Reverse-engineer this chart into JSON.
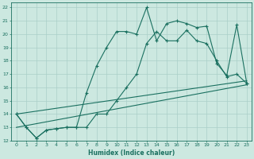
{
  "xlabel": "Humidex (Indice chaleur)",
  "xlim": [
    -0.5,
    23.5
  ],
  "ylim": [
    12,
    22.4
  ],
  "xticks": [
    0,
    1,
    2,
    3,
    4,
    5,
    6,
    7,
    8,
    9,
    10,
    11,
    12,
    13,
    14,
    15,
    16,
    17,
    18,
    19,
    20,
    21,
    22,
    23
  ],
  "yticks": [
    12,
    13,
    14,
    15,
    16,
    17,
    18,
    19,
    20,
    21,
    22
  ],
  "bg_color": "#cce8e0",
  "grid_color": "#aacfc8",
  "line_color": "#1a7060",
  "line1_x": [
    0,
    1,
    2,
    3,
    4,
    5,
    6,
    7,
    8,
    9,
    10,
    11,
    12,
    13,
    14,
    15,
    16,
    17,
    18,
    19,
    20,
    21,
    22,
    23
  ],
  "line1_y": [
    14,
    13,
    12.2,
    12.8,
    12.9,
    13.0,
    13.0,
    15.6,
    17.6,
    19.0,
    20.2,
    20.2,
    20.0,
    22.0,
    19.5,
    20.8,
    21.0,
    20.8,
    20.5,
    20.6,
    17.8,
    16.9,
    20.7,
    16.3
  ],
  "line2_x": [
    0,
    1,
    2,
    3,
    4,
    5,
    6,
    7,
    8,
    9,
    10,
    11,
    12,
    13,
    14,
    15,
    16,
    17,
    18,
    19,
    20,
    21,
    22,
    23
  ],
  "line2_y": [
    14,
    13,
    12.2,
    12.8,
    12.9,
    13.0,
    13.0,
    13.0,
    14.0,
    14.0,
    15.0,
    16.0,
    17.0,
    19.3,
    20.2,
    19.5,
    19.5,
    20.3,
    19.5,
    19.3,
    18.0,
    16.8,
    17.0,
    16.3
  ],
  "line3_x": [
    0,
    23
  ],
  "line3_y": [
    13.0,
    16.2
  ],
  "line4_x": [
    0,
    23
  ],
  "line4_y": [
    14.0,
    16.5
  ],
  "figsize": [
    3.2,
    2.0
  ],
  "dpi": 100
}
